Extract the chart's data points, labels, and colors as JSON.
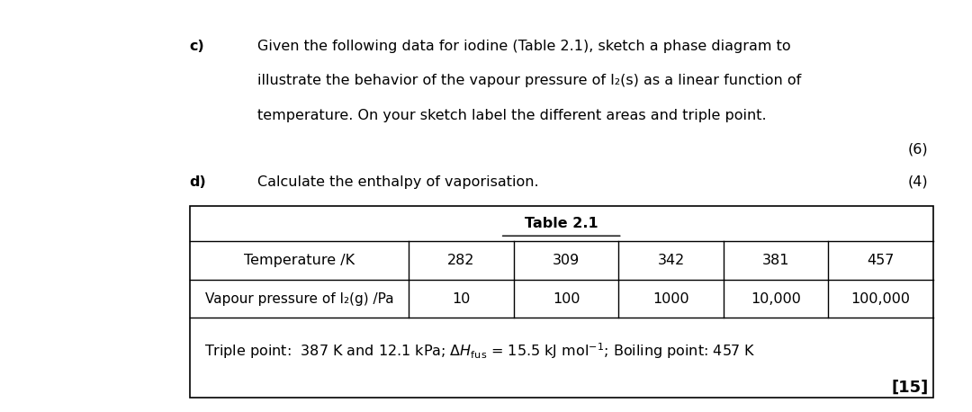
{
  "bg_color": "#ffffff",
  "fig_width": 10.8,
  "fig_height": 4.58,
  "part_c_label": "c)",
  "part_c_text_lines": [
    "Given the following data for iodine (Table 2.1), sketch a phase diagram to",
    "illustrate the behavior of the vapour pressure of I₂(s) as a linear function of",
    "temperature. On your sketch label the different areas and triple point."
  ],
  "part_c_mark": "(6)",
  "part_d_label": "d)",
  "part_d_text": "Calculate the enthalpy of vaporisation.",
  "part_d_mark": "(4)",
  "table_title": "Table 2.1",
  "col_header_1": "Temperature /K",
  "col_header_2": "Vapour pressure of I₂(g) /Pa",
  "temp_values": [
    "282",
    "309",
    "342",
    "381",
    "457"
  ],
  "pressure_values": [
    "10",
    "100",
    "1000",
    "10,000",
    "100,000"
  ],
  "total_mark": "[15]",
  "font_size_body": 11.5,
  "font_size_table": 11.5,
  "font_size_marks": 11.5,
  "font_size_total": 13
}
